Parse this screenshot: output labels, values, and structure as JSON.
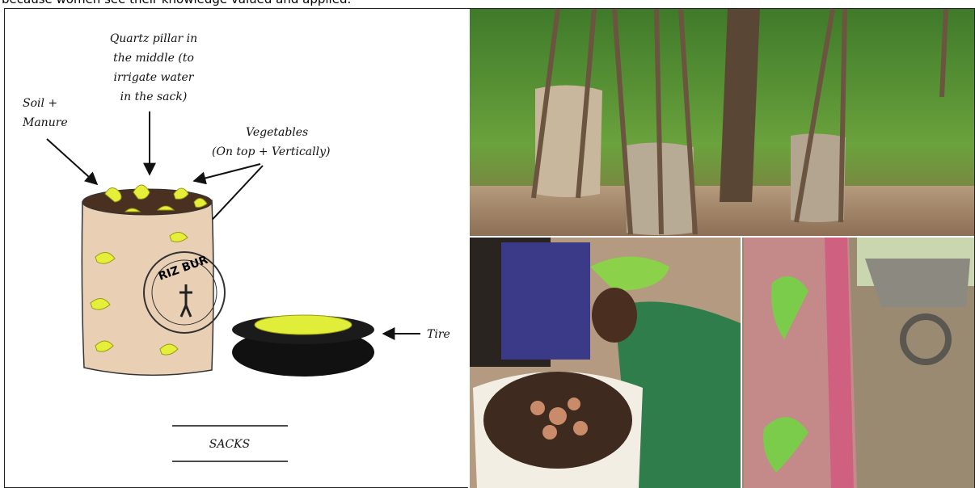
{
  "caption": "because women see their knowledge valued and applied.",
  "figure": {
    "quartz_label": [
      "Quartz pillar in",
      "the middle (to",
      "irrigate water",
      "in the sack)"
    ],
    "soil_label": [
      "Soil +",
      "Manure"
    ],
    "vegetables_label": [
      "Vegetables",
      "(On top + Vertically)"
    ],
    "tire_label": "Tire",
    "sack_print": "RIZ BUR",
    "title": "SACKS"
  }
}
